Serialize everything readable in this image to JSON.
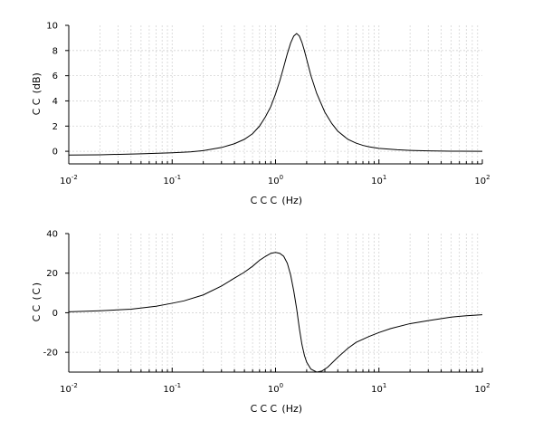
{
  "chart_data": [
    {
      "type": "line",
      "xscale": "log",
      "xlim": [
        0.01,
        100
      ],
      "ylim": [
        -1,
        10
      ],
      "xlabel": "ＣＣＣ (Hz)",
      "ylabel": "ＣＣ (dB)",
      "grid": true,
      "xticks": [
        {
          "base": "10",
          "exp": "-2",
          "value": 0.01
        },
        {
          "base": "10",
          "exp": "-1",
          "value": 0.1
        },
        {
          "base": "10",
          "exp": "0",
          "value": 1
        },
        {
          "base": "10",
          "exp": "1",
          "value": 10
        },
        {
          "base": "10",
          "exp": "2",
          "value": 100
        }
      ],
      "yticks": [
        "0",
        "2",
        "4",
        "6",
        "8",
        "10"
      ],
      "x": [
        0.01,
        0.02,
        0.05,
        0.1,
        0.15,
        0.2,
        0.3,
        0.4,
        0.5,
        0.6,
        0.7,
        0.8,
        0.9,
        1.0,
        1.1,
        1.2,
        1.3,
        1.4,
        1.5,
        1.6,
        1.7,
        1.8,
        1.9,
        2.0,
        2.2,
        2.5,
        3.0,
        3.5,
        4.0,
        5.0,
        6.0,
        7.0,
        8.0,
        10,
        15,
        20,
        30,
        50,
        100
      ],
      "y": [
        -0.3,
        -0.28,
        -0.2,
        -0.12,
        -0.05,
        0.05,
        0.3,
        0.6,
        0.95,
        1.4,
        2.0,
        2.75,
        3.55,
        4.55,
        5.6,
        6.7,
        7.75,
        8.6,
        9.15,
        9.35,
        9.15,
        8.65,
        8.0,
        7.3,
        6.0,
        4.6,
        3.1,
        2.2,
        1.6,
        0.95,
        0.65,
        0.47,
        0.36,
        0.23,
        0.12,
        0.07,
        0.03,
        0.01,
        0.0
      ]
    },
    {
      "type": "line",
      "xscale": "log",
      "xlim": [
        0.01,
        100
      ],
      "ylim": [
        -30,
        40
      ],
      "xlabel": "ＣＣＣ (Hz)",
      "ylabel": "ＣＣ (Ｃ)",
      "grid": true,
      "xticks": [
        {
          "base": "10",
          "exp": "-2",
          "value": 0.01
        },
        {
          "base": "10",
          "exp": "-1",
          "value": 0.1
        },
        {
          "base": "10",
          "exp": "0",
          "value": 1
        },
        {
          "base": "10",
          "exp": "1",
          "value": 10
        },
        {
          "base": "10",
          "exp": "2",
          "value": 100
        }
      ],
      "yticks": [
        "-20",
        "0",
        "20",
        "40"
      ],
      "x": [
        0.01,
        0.02,
        0.04,
        0.07,
        0.1,
        0.13,
        0.2,
        0.3,
        0.4,
        0.5,
        0.6,
        0.7,
        0.8,
        0.9,
        1.0,
        1.1,
        1.2,
        1.3,
        1.4,
        1.5,
        1.6,
        1.7,
        1.8,
        1.9,
        2.0,
        2.2,
        2.5,
        2.8,
        3.2,
        4.0,
        5.0,
        6.0,
        8.0,
        10,
        13,
        20,
        30,
        50,
        70,
        100
      ],
      "y": [
        0.5,
        1.0,
        1.8,
        3.3,
        4.8,
        6.0,
        9.0,
        13.5,
        17.5,
        20.5,
        23.5,
        26.5,
        28.5,
        30.0,
        30.5,
        30.0,
        28.5,
        25.0,
        19.0,
        11.0,
        2.0,
        -8.0,
        -16.0,
        -21.5,
        -25.0,
        -28.5,
        -30.0,
        -29.5,
        -27.5,
        -22.5,
        -18.0,
        -15.0,
        -12.0,
        -10.0,
        -8.0,
        -5.5,
        -4.0,
        -2.2,
        -1.5,
        -1.0
      ]
    }
  ]
}
